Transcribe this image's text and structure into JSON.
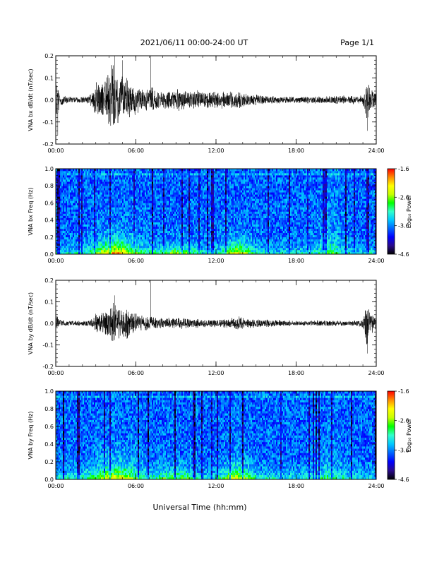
{
  "header": {
    "date_range": "2021/06/11  00:00-24:00 UT",
    "page": "Page 1/1"
  },
  "footer": {
    "xlabel": "Universal Time (hh:mm)"
  },
  "colors": {
    "trace": "#000000",
    "spectrogram_scale": [
      "#000000",
      "#2a0a8c",
      "#0000ff",
      "#0064ff",
      "#00c8ff",
      "#32ffcc",
      "#00ff00",
      "#c8ff00",
      "#ffff00",
      "#ff8c00",
      "#ff0000"
    ]
  },
  "chart_data": [
    {
      "type": "line",
      "ylabel": "VNA bx dB/dt (nT/sec)",
      "ylim": [
        -0.2,
        0.2
      ],
      "yticks": [
        "0.2",
        "0.1",
        "0.0",
        "-0.1",
        "-0.2"
      ],
      "xlim": [
        0,
        24
      ],
      "xticks": [
        "00:00",
        "06:00",
        "12:00",
        "18:00",
        "24:00"
      ],
      "envelope": {
        "x": [
          0,
          0.3,
          0.6,
          1,
          2,
          2.5,
          2.8,
          3,
          3.5,
          4,
          4.3,
          4.6,
          5,
          5.5,
          6,
          6.5,
          7,
          7.2,
          7.5,
          8,
          9,
          10,
          11,
          12,
          13,
          13.7,
          14.2,
          15,
          16,
          18,
          20,
          22,
          23,
          23.3,
          23.6,
          24
        ],
        "amplitude": [
          0.1,
          0.04,
          0.02,
          0.015,
          0.015,
          0.02,
          0.05,
          0.09,
          0.1,
          0.13,
          0.18,
          0.14,
          0.12,
          0.1,
          0.08,
          0.06,
          0.05,
          0.06,
          0.05,
          0.04,
          0.05,
          0.05,
          0.04,
          0.04,
          0.04,
          0.045,
          0.03,
          0.025,
          0.02,
          0.015,
          0.02,
          0.02,
          0.02,
          0.1,
          0.07,
          0.03
        ]
      },
      "spikes": [
        {
          "x": 4.4,
          "y": 0.2
        },
        {
          "x": 5.0,
          "y": 0.18
        },
        {
          "x": 7.1,
          "y": 0.21
        },
        {
          "x": 0.15,
          "y": -0.16
        },
        {
          "x": 23.35,
          "y": -0.14
        }
      ]
    },
    {
      "type": "heatmap",
      "ylabel": "VNA bx Freq (Hz)",
      "ylim": [
        0,
        1.0
      ],
      "yticks": [
        "1.0",
        "0.8",
        "0.6",
        "0.4",
        "0.2",
        "0.0"
      ],
      "xlim": [
        0,
        24
      ],
      "xticks": [
        "00:00",
        "06:00",
        "12:00",
        "18:00",
        "24:00"
      ],
      "colorbar": {
        "label": "Log₁₀ Power",
        "range": [
          -4.6,
          -1.6
        ],
        "ticks": [
          "-1.6",
          "-2.6",
          "-3.6",
          "-4.6"
        ]
      },
      "enhancements": [
        {
          "t": 4.5,
          "w": 1.6,
          "f": 0.14,
          "v": 0.75
        },
        {
          "t": 9.0,
          "w": 1.4,
          "f": 0.08,
          "v": 0.55
        },
        {
          "t": 13.6,
          "w": 1.0,
          "f": 0.12,
          "v": 0.65
        },
        {
          "t": 20.5,
          "w": 0.8,
          "f": 0.4,
          "v": 0.45
        }
      ]
    },
    {
      "type": "line",
      "ylabel": "VNA by dB/dt (nT/sec)",
      "ylim": [
        -0.2,
        0.2
      ],
      "yticks": [
        "0.2",
        "0.1",
        "0.0",
        "-0.1",
        "-0.2"
      ],
      "xlim": [
        0,
        24
      ],
      "xticks": [
        "00:00",
        "06:00",
        "12:00",
        "18:00",
        "24:00"
      ],
      "envelope": {
        "x": [
          0,
          0.3,
          0.6,
          1,
          2,
          2.5,
          2.8,
          3,
          3.5,
          4,
          4.3,
          4.6,
          5,
          5.5,
          6,
          6.5,
          7,
          7.5,
          8,
          9,
          10,
          11,
          12,
          13,
          13.7,
          14.2,
          15,
          16,
          18,
          20,
          22,
          23,
          23.3,
          23.6,
          24
        ],
        "amplitude": [
          0.05,
          0.02,
          0.015,
          0.012,
          0.012,
          0.015,
          0.025,
          0.05,
          0.06,
          0.09,
          0.12,
          0.09,
          0.09,
          0.07,
          0.05,
          0.04,
          0.035,
          0.03,
          0.025,
          0.03,
          0.025,
          0.02,
          0.02,
          0.025,
          0.04,
          0.025,
          0.02,
          0.02,
          0.012,
          0.015,
          0.012,
          0.02,
          0.12,
          0.06,
          0.02
        ]
      },
      "spikes": [
        {
          "x": 7.1,
          "y": 0.2
        },
        {
          "x": 4.4,
          "y": 0.13
        },
        {
          "x": 23.35,
          "y": -0.14
        }
      ]
    },
    {
      "type": "heatmap",
      "ylabel": "VNA by Freq (Hz)",
      "ylim": [
        0,
        1.0
      ],
      "yticks": [
        "1.0",
        "0.8",
        "0.6",
        "0.4",
        "0.2",
        "0.0"
      ],
      "xlim": [
        0,
        24
      ],
      "xticks": [
        "00:00",
        "06:00",
        "12:00",
        "18:00",
        "24:00"
      ],
      "colorbar": {
        "label": "Log₁₀ Power",
        "range": [
          -4.6,
          -1.6
        ],
        "ticks": [
          "-1.6",
          "-2.6",
          "-3.6",
          "-4.6"
        ]
      },
      "enhancements": [
        {
          "t": 4.5,
          "w": 1.8,
          "f": 0.16,
          "v": 0.65
        },
        {
          "t": 9.0,
          "w": 1.4,
          "f": 0.1,
          "v": 0.5
        },
        {
          "t": 13.6,
          "w": 1.1,
          "f": 0.15,
          "v": 0.6
        },
        {
          "t": 20.5,
          "w": 1.0,
          "f": 0.3,
          "v": 0.4
        }
      ]
    }
  ]
}
